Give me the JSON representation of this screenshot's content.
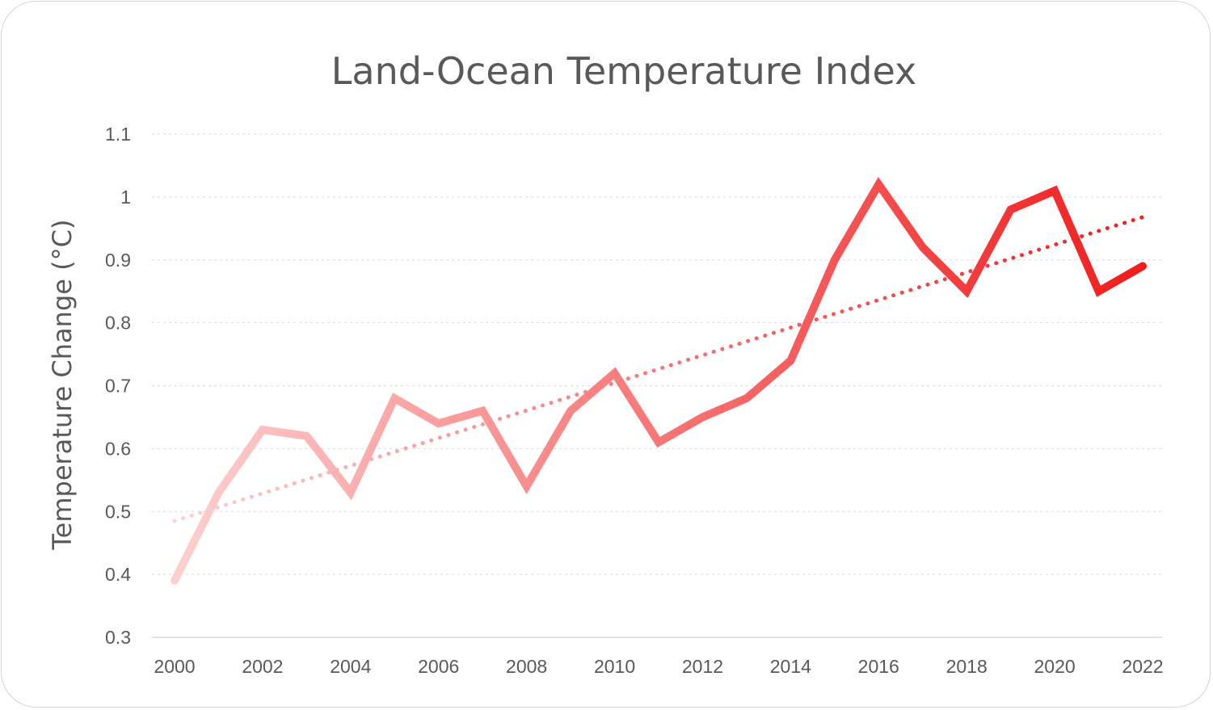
{
  "chart_data": {
    "type": "line",
    "title": "Land-Ocean Temperature Index",
    "xlabel": "",
    "ylabel": "Temperature Change (°C)",
    "ylim": [
      0.3,
      1.1
    ],
    "yticks": [
      "0.3",
      "0.4",
      "0.5",
      "0.6",
      "0.7",
      "0.8",
      "0.9",
      "1",
      "1.1"
    ],
    "xticks": [
      "2000",
      "2002",
      "2004",
      "2006",
      "2008",
      "2010",
      "2012",
      "2014",
      "2016",
      "2018",
      "2020",
      "2022"
    ],
    "x": [
      2000,
      2001,
      2002,
      2003,
      2004,
      2005,
      2006,
      2007,
      2008,
      2009,
      2010,
      2011,
      2012,
      2013,
      2014,
      2015,
      2016,
      2017,
      2018,
      2019,
      2020,
      2021,
      2022
    ],
    "series": [
      {
        "name": "Temperature Change",
        "values": [
          0.39,
          0.53,
          0.63,
          0.62,
          0.53,
          0.68,
          0.64,
          0.66,
          0.54,
          0.66,
          0.72,
          0.61,
          0.65,
          0.68,
          0.74,
          0.9,
          1.02,
          0.92,
          0.85,
          0.98,
          1.01,
          0.85,
          0.89
        ]
      }
    ],
    "trendline": {
      "type": "linear",
      "start": [
        2000,
        0.485
      ],
      "end": [
        2022,
        0.968
      ]
    },
    "grid": true,
    "colors": {
      "line_start": "#fdd0d0",
      "line_end": "#f21c1c",
      "grid": "#d9d9d9",
      "axis": "#d9d9d9",
      "text": "#595959"
    }
  }
}
